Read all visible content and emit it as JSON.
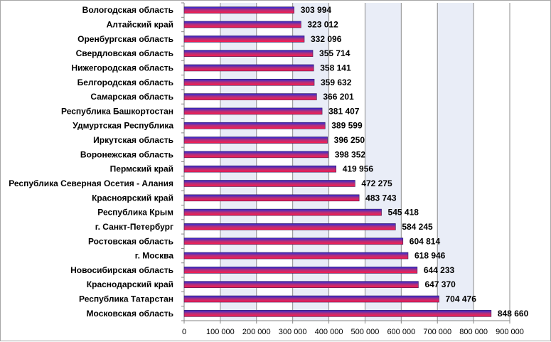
{
  "chart_data": {
    "type": "bar",
    "orientation": "horizontal",
    "categories": [
      "Вологодская область",
      "Алтайский край",
      "Оренбургская область",
      "Свердловская область",
      "Нижегородская область",
      "Белгородская область",
      "Самарская область",
      "Республика Башкортостан",
      "Удмуртская Республика",
      "Иркутская область",
      "Воронежская область",
      "Пермский край",
      "Республика Северная Осетия - Алания",
      "Красноярский край",
      "Республика Крым",
      "г. Санкт-Петербург",
      "Ростовская область",
      "г. Москва",
      "Новосибирская область",
      "Краснодарский край",
      "Республика Татарстан",
      "Московская область"
    ],
    "values": [
      303994,
      323012,
      332096,
      355714,
      358141,
      359632,
      366201,
      381407,
      389599,
      396250,
      398352,
      419956,
      472275,
      483743,
      545418,
      584245,
      604814,
      618946,
      644233,
      647370,
      704476,
      848660
    ],
    "value_labels": [
      "303 994",
      "323 012",
      "332 096",
      "355 714",
      "358 141",
      "359 632",
      "366 201",
      "381 407",
      "389 599",
      "396 250",
      "398 352",
      "419 956",
      "472 275",
      "483 743",
      "545 418",
      "584 245",
      "604 814",
      "618 946",
      "644 233",
      "647 370",
      "704 476",
      "848 660"
    ],
    "x_ticks": [
      0,
      100000,
      200000,
      300000,
      400000,
      500000,
      600000,
      700000,
      800000,
      900000
    ],
    "x_tick_labels": [
      "0",
      "100 000",
      "200 000",
      "300 000",
      "400 000",
      "500 000",
      "600 000",
      "700 000",
      "800 000",
      "900 000"
    ],
    "xlim": [
      0,
      900000
    ],
    "grid": true,
    "legend": "none",
    "colors": {
      "bar_top": "#2b2bd6",
      "bar_mid": "#b4307a",
      "bar_bottom": "#ff1a4a",
      "plot_bg_alt": "#e9edf7",
      "gridline": "#8c8c8c",
      "frame": "#a6a6a6"
    }
  }
}
